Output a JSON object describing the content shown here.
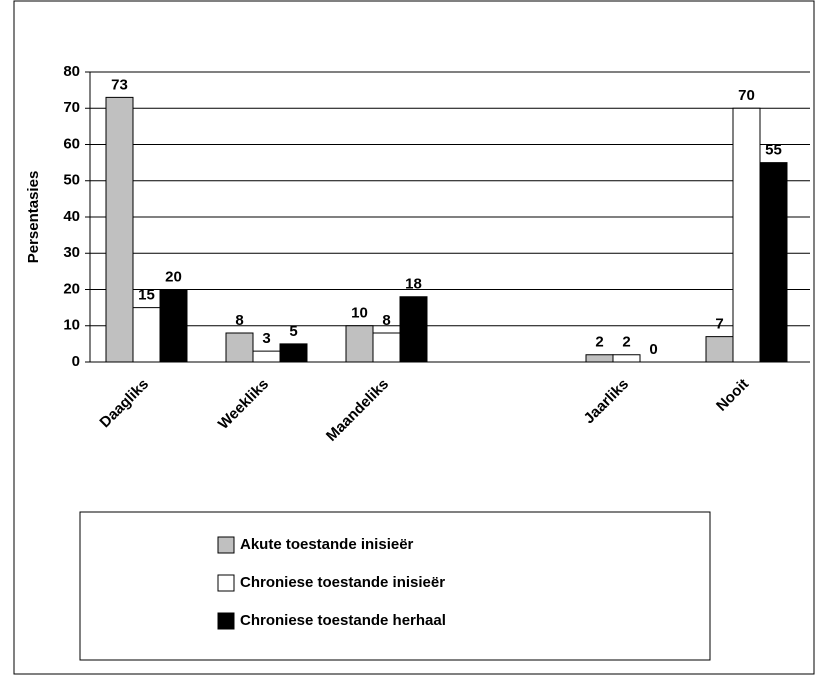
{
  "chart_data": {
    "type": "bar",
    "y_label": "Persentasies",
    "categories": [
      "Daagliks",
      "Weekliks",
      "Maandeliks",
      null,
      "Jaarliks",
      "Nooit"
    ],
    "series": [
      {
        "name": "Akute toestande inisieër",
        "color": "#c0c0c0",
        "values": [
          73,
          8,
          10,
          null,
          2,
          7
        ]
      },
      {
        "name": "Chroniese toestande inisieër",
        "color": "#ffffff",
        "values": [
          15,
          3,
          8,
          null,
          2,
          70
        ]
      },
      {
        "name": "Chroniese toestande herhaal",
        "color": "#000000",
        "values": [
          20,
          5,
          18,
          null,
          0,
          55
        ]
      }
    ],
    "ylim": [
      0,
      80
    ],
    "yticks": [
      0,
      10,
      20,
      30,
      40,
      50,
      60,
      70,
      80
    ],
    "grid": true,
    "legend": "bottom"
  }
}
